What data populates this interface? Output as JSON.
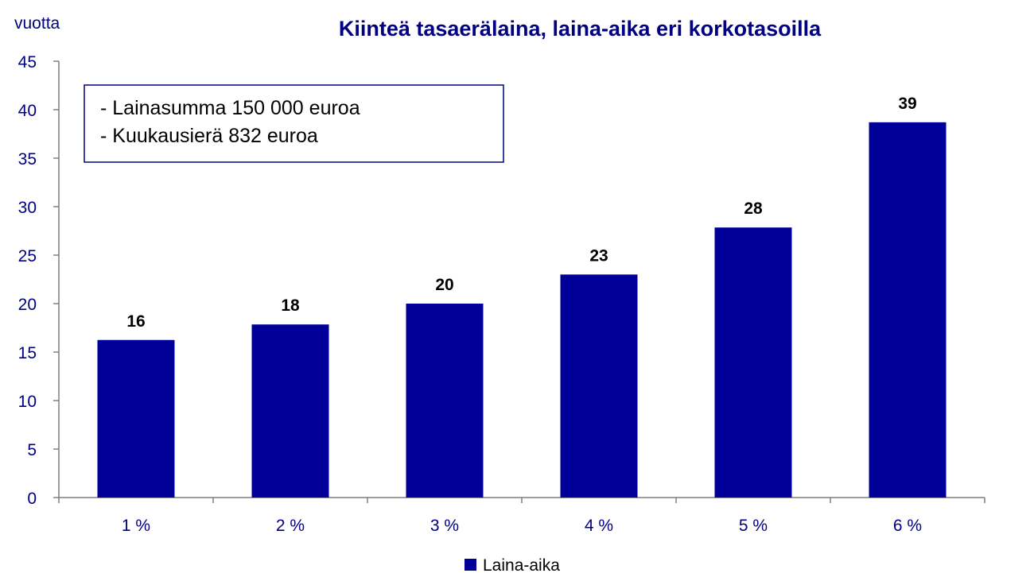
{
  "chart_data": {
    "type": "bar",
    "title": "Kiinteä tasaerälaina, laina-aika eri korkotasoilla",
    "ylabel": "vuotta",
    "xlabel": "",
    "categories": [
      "1 %",
      "2 %",
      "3 %",
      "4 %",
      "5 %",
      "6 %"
    ],
    "series": [
      {
        "name": "Laina-aika",
        "values": [
          16.25,
          17.85,
          20.0,
          23.0,
          27.85,
          38.7
        ],
        "data_labels": [
          "16",
          "18",
          "20",
          "23",
          "28",
          "39"
        ]
      }
    ],
    "ylim": [
      0,
      45
    ],
    "yticks": [
      0,
      5,
      10,
      15,
      20,
      25,
      30,
      35,
      40,
      45
    ],
    "grid": false,
    "legend": "bottom",
    "annotation": [
      "- Lainasumma 150 000 euroa",
      "- Kuukausierä 832 euroa"
    ],
    "colors": {
      "bar": "#000099",
      "axis_text": "#000080",
      "axis": "#7f7f7f",
      "box_border": "#000080"
    }
  }
}
